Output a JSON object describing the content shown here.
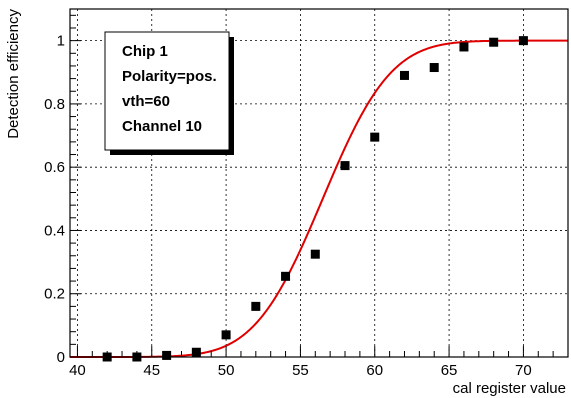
{
  "chart_data": {
    "type": "scatter",
    "xlabel": "cal register value",
    "ylabel": "Detection efficiency",
    "xlim": [
      39.5,
      73
    ],
    "ylim": [
      0,
      1.1
    ],
    "x_ticks": [
      40,
      45,
      50,
      55,
      60,
      65,
      70
    ],
    "x_tick_labels": [
      "40",
      "45",
      "50",
      "55",
      "60",
      "65",
      "70"
    ],
    "y_ticks": [
      0,
      0.2,
      0.4,
      0.6,
      0.8,
      1
    ],
    "y_tick_labels": [
      "0",
      "0.2",
      "0.4",
      "0.6",
      "0.8",
      "1"
    ],
    "grid": true,
    "info_box": [
      "Chip 1",
      "Polarity=pos.",
      "vth=60",
      "Channel 10"
    ],
    "series": [
      {
        "kind": "points",
        "color": "#000000",
        "x": [
          42,
          44,
          46,
          48,
          50,
          52,
          54,
          56,
          58,
          60,
          62,
          64,
          66,
          68,
          70
        ],
        "y": [
          0.0,
          0.0,
          0.005,
          0.015,
          0.07,
          0.16,
          0.255,
          0.325,
          0.605,
          0.695,
          0.89,
          0.915,
          0.98,
          0.995,
          1.0
        ]
      },
      {
        "kind": "fit-curve",
        "color": "#e00000",
        "model": "gaussian-cdf",
        "mean": 56.5,
        "sigma": 3.6
      }
    ]
  }
}
